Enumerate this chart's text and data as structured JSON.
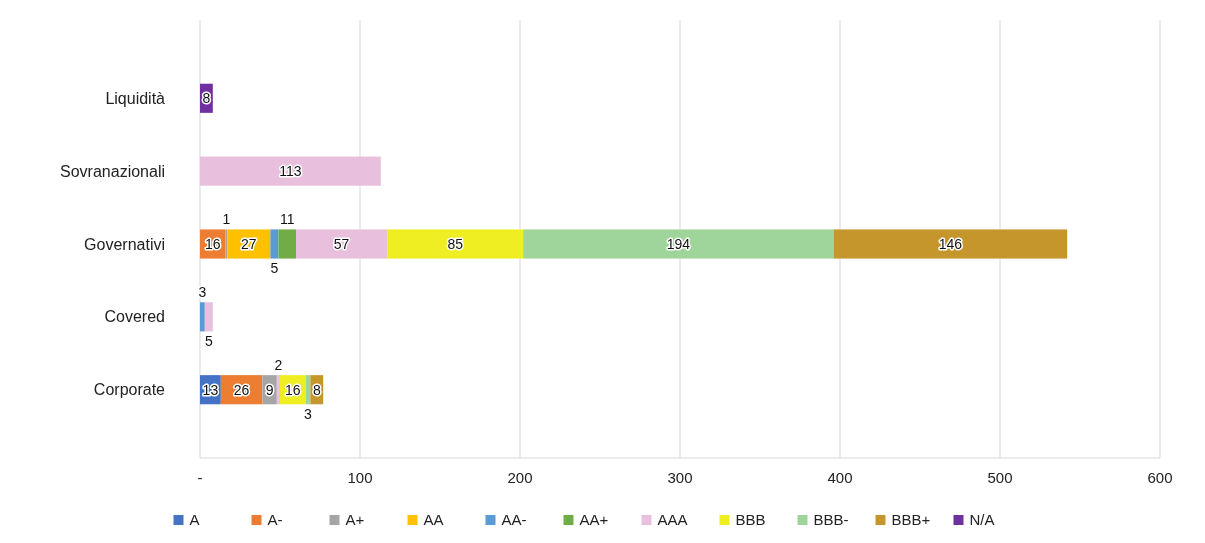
{
  "chart_data": {
    "type": "bar",
    "orientation": "horizontal",
    "stacked": true,
    "categories": [
      "Liquidità",
      "Sovranazionali",
      "Governativi",
      "Covered",
      "Corporate"
    ],
    "series": [
      {
        "name": "A",
        "color": "#4472c4",
        "values": [
          null,
          null,
          null,
          null,
          13
        ]
      },
      {
        "name": "A-",
        "color": "#ed7d31",
        "values": [
          null,
          null,
          16,
          null,
          26
        ]
      },
      {
        "name": "A+",
        "color": "#a5a5a5",
        "values": [
          null,
          null,
          1,
          null,
          9
        ]
      },
      {
        "name": "AA",
        "color": "#ffc000",
        "values": [
          null,
          null,
          27,
          null,
          null
        ]
      },
      {
        "name": "AA-",
        "color": "#5b9bd5",
        "values": [
          null,
          null,
          5,
          3,
          null
        ]
      },
      {
        "name": "AA+",
        "color": "#70ad47",
        "values": [
          null,
          null,
          11,
          null,
          null
        ]
      },
      {
        "name": "AAA",
        "color": "#e8bfdc",
        "values": [
          null,
          113,
          57,
          5,
          2
        ]
      },
      {
        "name": "BBB",
        "color": "#eeee22",
        "values": [
          null,
          null,
          85,
          null,
          16
        ]
      },
      {
        "name": "BBB-",
        "color": "#9fd49b",
        "values": [
          null,
          null,
          194,
          null,
          3
        ]
      },
      {
        "name": "BBB+",
        "color": "#c5962b",
        "values": [
          null,
          null,
          146,
          null,
          8
        ]
      },
      {
        "name": "N/A",
        "color": "#7030a0",
        "values": [
          8,
          null,
          null,
          null,
          null
        ]
      }
    ],
    "xlim": [
      0,
      600
    ],
    "xticks": [
      {
        "value": 0,
        "label": "-"
      },
      100,
      200,
      300,
      400,
      500,
      600
    ],
    "grid": "x",
    "data_labels": true,
    "legend": "bottom"
  }
}
